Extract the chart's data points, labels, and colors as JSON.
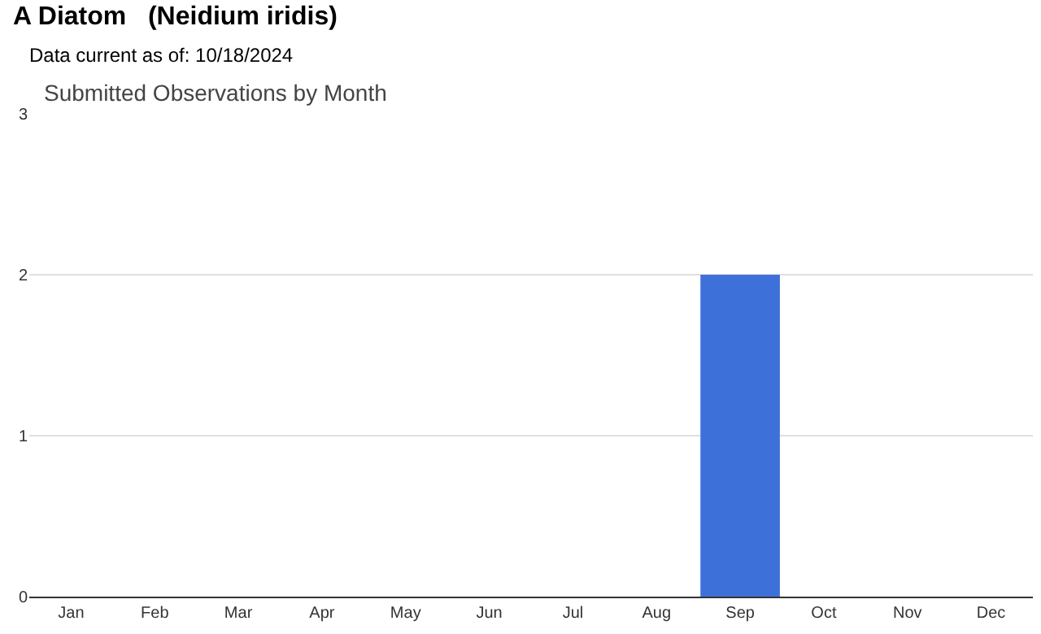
{
  "chart_data": {
    "type": "bar",
    "title": "A Diatom   (Neidium iridis)",
    "subtitle": "Data current as of: 10/18/2024",
    "annotations": [
      "Submitted Observations by Month"
    ],
    "categories": [
      "Jan",
      "Feb",
      "Mar",
      "Apr",
      "May",
      "Jun",
      "Jul",
      "Aug",
      "Sep",
      "Oct",
      "Nov",
      "Dec"
    ],
    "values": [
      0,
      0,
      0,
      0,
      0,
      0,
      0,
      0,
      2,
      0,
      0,
      0
    ],
    "color": "#3d71d9",
    "ylim": [
      0,
      3
    ],
    "yticks": [
      0,
      1,
      2,
      3
    ],
    "grid": "y"
  }
}
